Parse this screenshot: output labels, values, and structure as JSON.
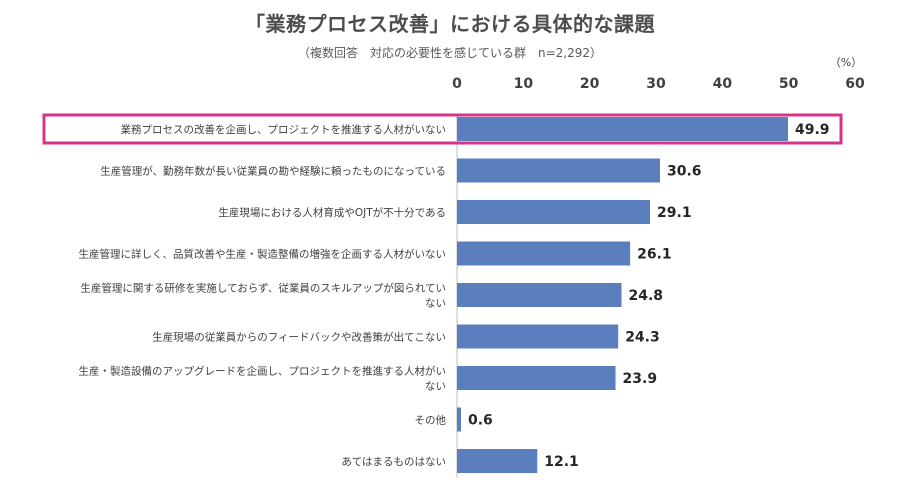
{
  "chart_data": {
    "type": "bar",
    "orientation": "horizontal",
    "title": "「業務プロセス改善」における具体的な課題",
    "subtitle": "（複数回答　対応の必要性を感じている群　n=2,292）",
    "unit": "（%）",
    "xlim": [
      0,
      60
    ],
    "ticks": [
      0,
      10,
      20,
      30,
      40,
      50,
      60
    ],
    "grid": false,
    "categories": [
      [
        "業務プロセスの改善を企画し、プロジェクトを推進する人材がいない"
      ],
      [
        "生産管理が、勤務年数が長い従業員の勘や経験に頼ったものになっている"
      ],
      [
        "生産現場における人材育成やOJTが不十分である"
      ],
      [
        "生産管理に詳しく、品質改善や生産・製造整備の増強を企画する人材がいない"
      ],
      [
        "生産管理に関する研修を実施しておらず、従業員のスキルアップが図られてい",
        "ない"
      ],
      [
        "生産現場の従業員からのフィードバックや改善策が出てこない"
      ],
      [
        "生産・製造設備のアップグレードを企画し、プロジェクトを推進する人材がい",
        "ない"
      ],
      [
        "その他"
      ],
      [
        "あてはまるものはない"
      ]
    ],
    "values": [
      49.9,
      30.6,
      29.1,
      26.1,
      24.8,
      24.3,
      23.9,
      0.6,
      12.1
    ],
    "value_labels": [
      "49.9",
      "30.6",
      "29.1",
      "26.1",
      "24.8",
      "24.3",
      "23.9",
      "0.6",
      "12.1"
    ],
    "highlight_index": 0,
    "colors": {
      "bar": "#5b7fbd",
      "highlight_border": "#d6338a",
      "text": "#404040"
    }
  }
}
